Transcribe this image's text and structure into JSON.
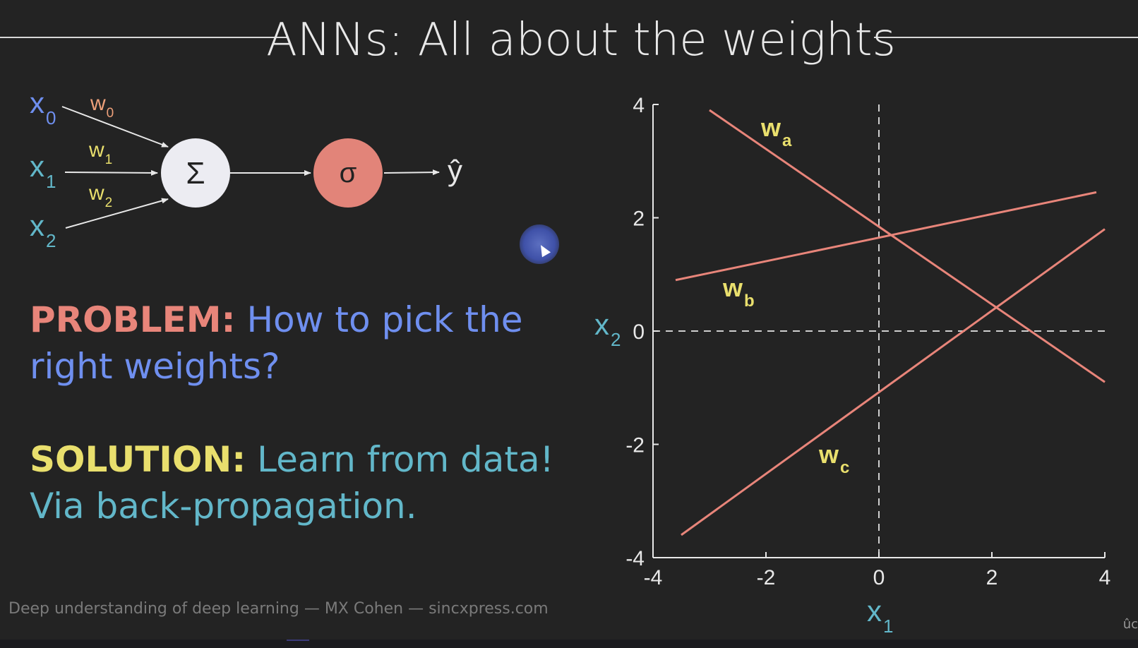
{
  "title": "ANNs: All about the weights",
  "colors": {
    "background": "#232323",
    "title": "#e8e8e8",
    "blue": "#6f8fef",
    "teal": "#62b7c9",
    "orange": "#eea07a",
    "yellow": "#e9df6d",
    "salmon": "#e8857a",
    "sum_node": "#ececf2",
    "sigma_node": "#e28479",
    "arrow": "#e8e8e8",
    "footer": "#7a7a7a"
  },
  "network": {
    "inputs": [
      {
        "name": "x",
        "sub": "0",
        "color": "#6f8fef"
      },
      {
        "name": "x",
        "sub": "1",
        "color": "#62b7c9"
      },
      {
        "name": "x",
        "sub": "2",
        "color": "#62b7c9"
      }
    ],
    "weights": [
      {
        "name": "w",
        "sub": "0",
        "color": "#eea07a"
      },
      {
        "name": "w",
        "sub": "1",
        "color": "#e9df6d"
      },
      {
        "name": "w",
        "sub": "2",
        "color": "#e9df6d"
      }
    ],
    "sum_symbol": "Σ",
    "activation_symbol": "σ",
    "output_symbol": "ŷ"
  },
  "problem": {
    "label": "PROBLEM:",
    "text": "How to pick the right weights?"
  },
  "solution": {
    "label": "SOLUTION:",
    "text": "Learn from data! Via back-propagation."
  },
  "footer": "Deep understanding of deep learning — MX Cohen — sincxpress.com",
  "corner_glyph": "ûc",
  "chart_data": {
    "type": "line",
    "xlabel": {
      "name": "x",
      "sub": "1"
    },
    "ylabel": {
      "name": "x",
      "sub": "2"
    },
    "xlim": [
      -4,
      4
    ],
    "ylim": [
      -4,
      4
    ],
    "xticks": [
      "-4",
      "-2",
      "0",
      "2",
      "4"
    ],
    "yticks": [
      "-4",
      "-2",
      "0",
      "2",
      "4"
    ],
    "zero_lines": true,
    "series": [
      {
        "name": "w",
        "sub": "a",
        "x": [
          -3.0,
          4.0
        ],
        "y": [
          3.9,
          -0.9
        ]
      },
      {
        "name": "w",
        "sub": "b",
        "x": [
          -3.6,
          3.85
        ],
        "y": [
          0.9,
          2.45
        ]
      },
      {
        "name": "w",
        "sub": "c",
        "x": [
          -3.5,
          4.0
        ],
        "y": [
          -3.6,
          1.8
        ]
      }
    ]
  }
}
